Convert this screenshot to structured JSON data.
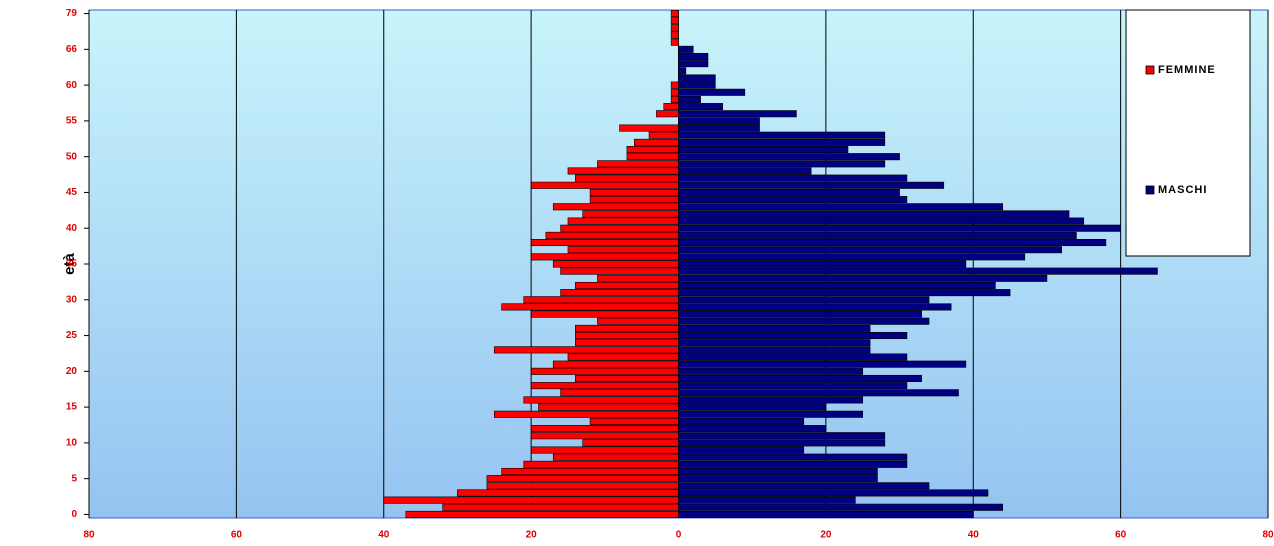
{
  "chart_data": {
    "type": "population_pyramid",
    "ylabel": "età",
    "categories": [
      "0",
      null,
      null,
      null,
      null,
      "5",
      null,
      null,
      null,
      null,
      "10",
      null,
      null,
      null,
      null,
      "15",
      null,
      null,
      null,
      null,
      "20",
      null,
      null,
      null,
      null,
      "25",
      null,
      null,
      null,
      null,
      "30",
      null,
      null,
      null,
      null,
      "35",
      null,
      null,
      null,
      null,
      "40",
      null,
      null,
      null,
      null,
      "45",
      null,
      null,
      null,
      null,
      "50",
      null,
      null,
      null,
      null,
      "55",
      null,
      null,
      null,
      null,
      "60",
      null,
      null,
      null,
      null,
      "66",
      null,
      null,
      null,
      null,
      "79"
    ],
    "series": [
      {
        "name": "FEMMINE",
        "color": "#ff0000",
        "values": [
          -37,
          -32,
          -40,
          -30,
          -26,
          -26,
          -24,
          -21,
          -17,
          -20,
          -13,
          -20,
          -20,
          -12,
          -25,
          -19,
          -21,
          -16,
          -20,
          -14,
          -20,
          -17,
          -15,
          -25,
          -14,
          -14,
          -14,
          -11,
          -20,
          -24,
          -21,
          -16,
          -14,
          -11,
          -16,
          -17,
          -20,
          -15,
          -20,
          -18,
          -16,
          -15,
          -13,
          -17,
          -12,
          -12,
          -20,
          -14,
          -15,
          -11,
          -7,
          -7,
          -6,
          -4,
          -8,
          0,
          -3,
          -2,
          -1,
          -1,
          -1,
          0,
          0,
          0,
          0,
          0,
          -1,
          -1,
          -1,
          -1,
          -1
        ]
      },
      {
        "name": "MASCHI",
        "color": "#000080",
        "values": [
          40,
          44,
          24,
          42,
          34,
          27,
          27,
          31,
          31,
          17,
          28,
          28,
          20,
          17,
          25,
          20,
          25,
          38,
          31,
          33,
          25,
          39,
          31,
          26,
          26,
          31,
          26,
          34,
          33,
          37,
          34,
          45,
          43,
          50,
          65,
          39,
          47,
          52,
          58,
          54,
          60,
          55,
          53,
          44,
          31,
          30,
          36,
          31,
          18,
          28,
          30,
          23,
          28,
          28,
          11,
          11,
          16,
          6,
          3,
          9,
          5,
          5,
          1,
          4,
          4,
          2,
          0,
          0,
          0,
          0,
          0
        ]
      }
    ],
    "xlim": [
      -80,
      80
    ],
    "xticks": [
      {
        "value": -80,
        "label": "80"
      },
      {
        "value": -60,
        "label": "60"
      },
      {
        "value": -40,
        "label": "40"
      },
      {
        "value": -20,
        "label": "20"
      },
      0,
      20,
      40,
      60,
      80
    ],
    "grid": true,
    "legend": "upper right"
  }
}
